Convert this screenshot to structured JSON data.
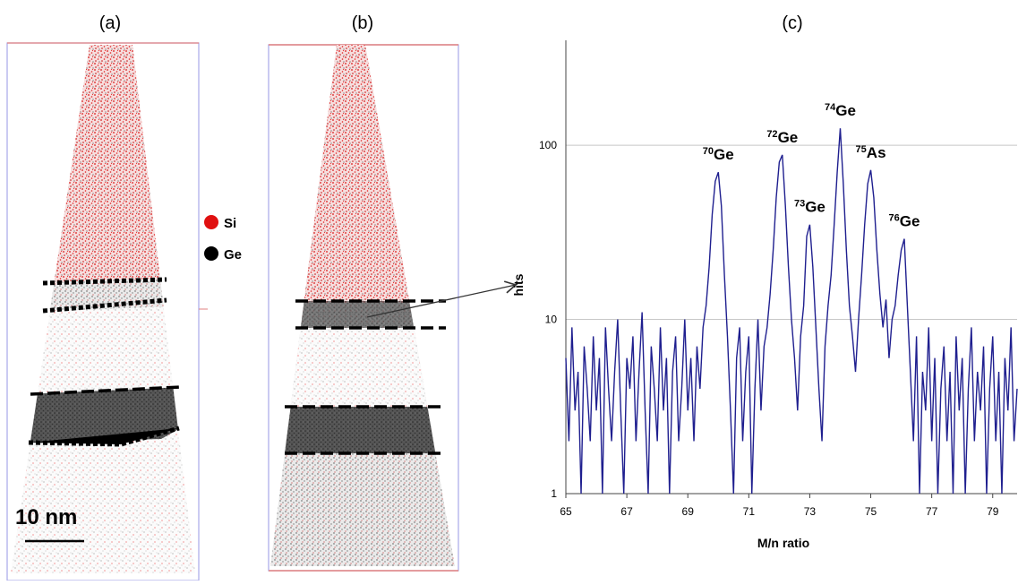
{
  "panel_labels": [
    "(a)",
    "(b)",
    "(c)"
  ],
  "legend": [
    "Si",
    "Ge"
  ],
  "scale_bar": "10 nm",
  "chart_data": {
    "type": "line",
    "x_label": "M/n ratio",
    "y_label": "hits",
    "color": "#1f1f8f",
    "log_y": true,
    "grid": true,
    "xlim": [
      65,
      79.8
    ],
    "xticks": [
      65,
      67,
      69,
      71,
      73,
      75,
      77,
      79
    ],
    "ylim": [
      1,
      400
    ],
    "yticks": [
      1,
      10,
      100
    ],
    "x": [
      65.0,
      65.1,
      65.2,
      65.3,
      65.4,
      65.5,
      65.6,
      65.7,
      65.8,
      65.9,
      66.0,
      66.1,
      66.2,
      66.3,
      66.4,
      66.5,
      66.6,
      66.7,
      66.8,
      66.9,
      67.0,
      67.1,
      67.2,
      67.3,
      67.4,
      67.5,
      67.6,
      67.7,
      67.8,
      67.9,
      68.0,
      68.1,
      68.2,
      68.3,
      68.4,
      68.5,
      68.6,
      68.7,
      68.8,
      68.9,
      69.0,
      69.1,
      69.2,
      69.3,
      69.4,
      69.5,
      69.6,
      69.7,
      69.8,
      69.9,
      70.0,
      70.1,
      70.2,
      70.3,
      70.4,
      70.5,
      70.6,
      70.7,
      70.8,
      70.9,
      71.0,
      71.1,
      71.2,
      71.3,
      71.4,
      71.5,
      71.6,
      71.7,
      71.8,
      71.9,
      72.0,
      72.1,
      72.2,
      72.3,
      72.4,
      72.5,
      72.6,
      72.7,
      72.8,
      72.9,
      73.0,
      73.1,
      73.2,
      73.3,
      73.4,
      73.5,
      73.6,
      73.7,
      73.8,
      73.9,
      74.0,
      74.1,
      74.2,
      74.3,
      74.4,
      74.5,
      74.6,
      74.7,
      74.8,
      74.9,
      75.0,
      75.1,
      75.2,
      75.3,
      75.4,
      75.5,
      75.6,
      75.7,
      75.8,
      75.9,
      76.0,
      76.1,
      76.2,
      76.3,
      76.4,
      76.5,
      76.6,
      76.7,
      76.8,
      76.9,
      77.0,
      77.1,
      77.2,
      77.3,
      77.4,
      77.5,
      77.6,
      77.7,
      77.8,
      77.9,
      78.0,
      78.1,
      78.2,
      78.3,
      78.4,
      78.5,
      78.6,
      78.7,
      78.8,
      78.9,
      79.0,
      79.1,
      79.2,
      79.3,
      79.4,
      79.5,
      79.6,
      79.7,
      79.8
    ],
    "values": [
      6,
      2,
      9,
      3,
      5,
      1,
      7,
      4,
      2,
      8,
      3,
      6,
      1,
      9,
      4,
      2,
      5,
      10,
      3,
      1,
      6,
      4,
      8,
      2,
      5,
      11,
      3,
      1,
      7,
      4,
      2,
      9,
      3,
      6,
      1,
      5,
      8,
      2,
      4,
      10,
      3,
      6,
      2,
      7,
      4,
      9,
      12,
      20,
      40,
      62,
      70,
      45,
      18,
      8,
      3,
      1,
      6,
      9,
      2,
      5,
      8,
      1,
      4,
      10,
      3,
      7,
      9,
      14,
      25,
      50,
      80,
      88,
      45,
      20,
      10,
      6,
      3,
      8,
      12,
      30,
      35,
      20,
      9,
      4,
      2,
      7,
      12,
      18,
      35,
      70,
      125,
      60,
      25,
      12,
      8,
      5,
      10,
      18,
      35,
      60,
      72,
      50,
      25,
      14,
      9,
      13,
      6,
      10,
      12,
      18,
      25,
      29,
      12,
      5,
      2,
      8,
      1,
      5,
      3,
      9,
      2,
      6,
      1,
      4,
      7,
      2,
      5,
      1,
      8,
      3,
      6,
      1,
      4,
      9,
      2,
      5,
      3,
      7,
      1,
      4,
      8,
      2,
      5,
      1,
      6,
      3,
      9,
      2,
      4
    ],
    "annotations": [
      {
        "x": 70.0,
        "mass": "70",
        "element": "Ge"
      },
      {
        "x": 72.1,
        "mass": "72",
        "element": "Ge"
      },
      {
        "x": 73.0,
        "mass": "73",
        "element": "Ge"
      },
      {
        "x": 74.0,
        "mass": "74",
        "element": "Ge"
      },
      {
        "x": 75.0,
        "mass": "75",
        "element": "As"
      },
      {
        "x": 76.1,
        "mass": "76",
        "element": "Ge"
      }
    ]
  }
}
